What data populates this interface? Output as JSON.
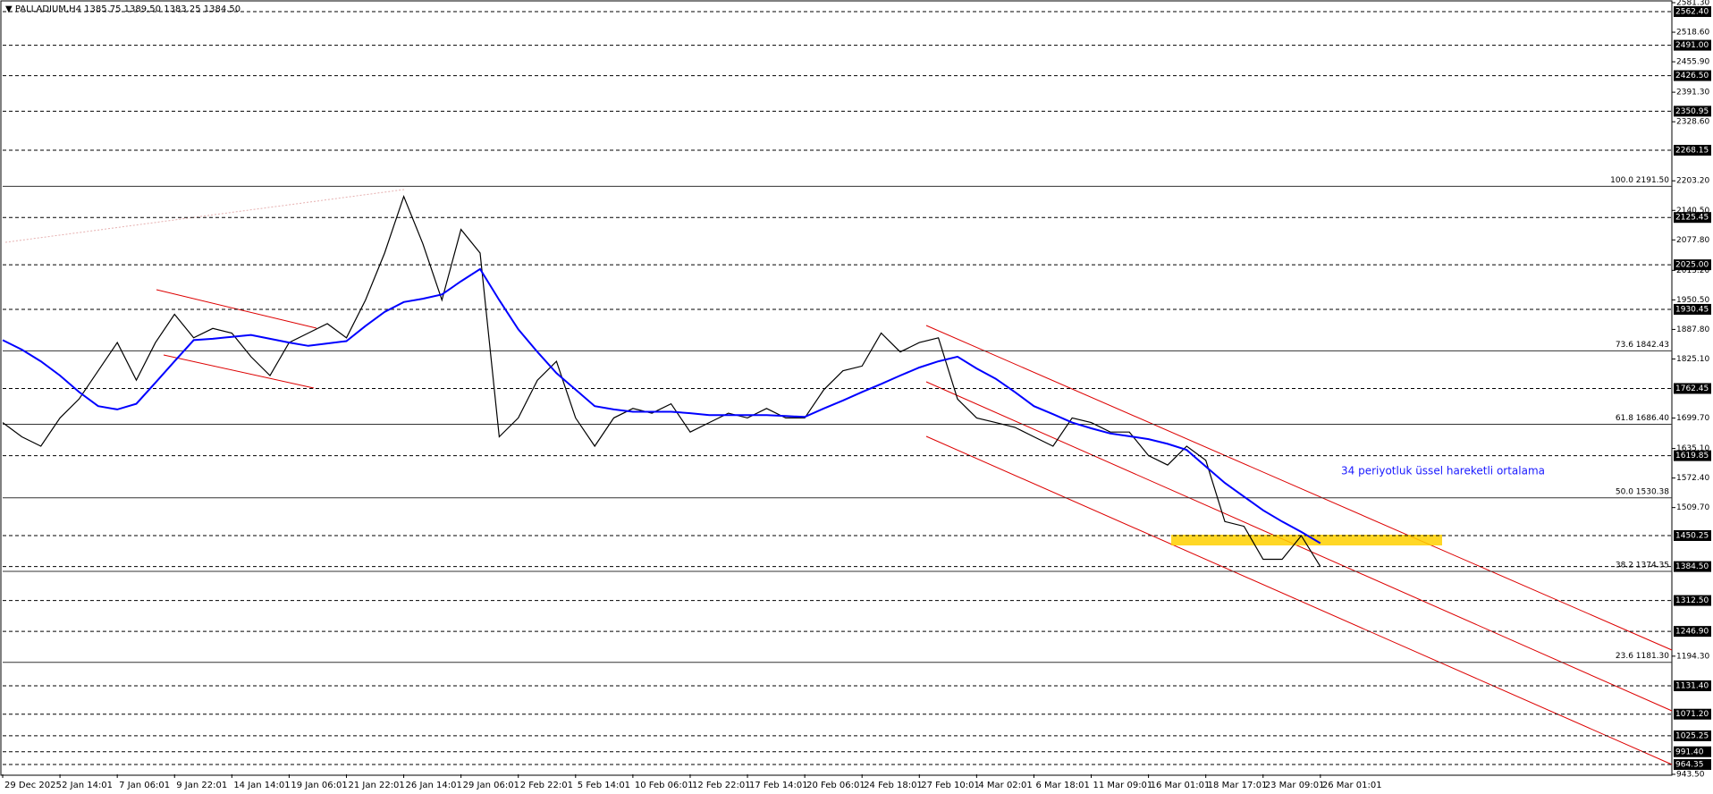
{
  "chart_data": {
    "type": "line",
    "title": "▼ PALLADIUM,H4  1385.75 1389.50 1383.25 1384.50",
    "annotation": "34 periyotluk üssel hareketli ortalama",
    "categories": [
      "29 Dec 2025",
      null,
      null,
      "2 Jan 14:01",
      null,
      null,
      "7 Jan 06:01",
      null,
      null,
      "9 Jan 22:01",
      null,
      null,
      "14 Jan 14:01",
      null,
      null,
      "19 Jan 06:01",
      null,
      null,
      "21 Jan 22:01",
      null,
      null,
      "26 Jan 14:01",
      null,
      null,
      "29 Jan 06:01",
      null,
      null,
      "2 Feb 22:01",
      null,
      null,
      "5 Feb 14:01",
      null,
      null,
      "10 Feb 06:01",
      null,
      null,
      "12 Feb 22:01",
      null,
      null,
      "17 Feb 14:01",
      null,
      null,
      "20 Feb 06:01",
      null,
      null,
      "24 Feb 18:01",
      null,
      null,
      "27 Feb 10:01",
      null,
      null,
      "4 Mar 02:01",
      null,
      null,
      "6 Mar 18:01",
      null,
      null,
      "11 Mar 09:01",
      null,
      null,
      "16 Mar 01:01",
      null,
      null,
      "18 Mar 17:01",
      null,
      null,
      "23 Mar 09:01",
      null,
      null,
      "26 Mar 01:01"
    ],
    "series": [
      {
        "name": "PALLADIUM,H4",
        "color": "#000000",
        "values": [
          1690,
          1660,
          1640,
          1700,
          1740,
          1800,
          1860,
          1780,
          1860,
          1920,
          1870,
          1890,
          1880,
          1830,
          1790,
          1860,
          1880,
          1900,
          1870,
          1950,
          2050,
          2170,
          2070,
          1950,
          2100,
          2050,
          1660,
          1700,
          1780,
          1820,
          1700,
          1640,
          1700,
          1720,
          1710,
          1730,
          1670,
          1690,
          1710,
          1700,
          1720,
          1700,
          1700,
          1760,
          1800,
          1810,
          1880,
          1840,
          1860,
          1870,
          1740,
          1700,
          1690,
          1680,
          1660,
          1640,
          1700,
          1690,
          1670,
          1670,
          1620,
          1600,
          1640,
          1610,
          1480,
          1470,
          1400,
          1400,
          1450,
          1384.5
        ]
      },
      {
        "name": "EMA 34",
        "color": "#0000ff",
        "values": [
          1865,
          1845,
          1820,
          1790,
          1755,
          1725,
          1718,
          1730,
          1775,
          1820,
          1865,
          1868,
          1872,
          1876,
          1868,
          1860,
          1853,
          1858,
          1863,
          1895,
          1925,
          1946,
          1953,
          1962,
          1990,
          2016,
          1950,
          1888,
          1840,
          1795,
          1760,
          1725,
          1718,
          1713,
          1713,
          1713,
          1710,
          1706,
          1706,
          1706,
          1706,
          1704,
          1702,
          1720,
          1737,
          1755,
          1772,
          1790,
          1807,
          1820,
          1830,
          1805,
          1783,
          1755,
          1725,
          1708,
          1690,
          1678,
          1667,
          1661,
          1655,
          1645,
          1632,
          1597,
          1562,
          1533,
          1504,
          1480,
          1458,
          1434
        ]
      }
    ],
    "ylim": [
      943.5,
      2581.3
    ],
    "yticks": [
      {
        "value": 2581.3,
        "label": "2581.30"
      },
      {
        "value": 2518.6,
        "label": "2518.60"
      },
      {
        "value": 2455.9,
        "label": "2455.90"
      },
      {
        "value": 2391.3,
        "label": "2391.30"
      },
      {
        "value": 2328.6,
        "label": "2328.60"
      },
      {
        "value": 2203.2,
        "label": "2203.20"
      },
      {
        "value": 2140.5,
        "label": "2140.50"
      },
      {
        "value": 2077.8,
        "label": "2077.80"
      },
      {
        "value": 2013.2,
        "label": "2013.20"
      },
      {
        "value": 1950.5,
        "label": "1950.50"
      },
      {
        "value": 1887.8,
        "label": "1887.80"
      },
      {
        "value": 1825.1,
        "label": "1825.10"
      },
      {
        "value": 1699.7,
        "label": "1699.70"
      },
      {
        "value": 1635.1,
        "label": "1635.10"
      },
      {
        "value": 1572.4,
        "label": "1572.40"
      },
      {
        "value": 1509.7,
        "label": "1509.70"
      },
      {
        "value": 1194.3,
        "label": "1194.30"
      },
      {
        "value": 943.5,
        "label": "943.50"
      }
    ],
    "levels": [
      {
        "value": 2562.4,
        "label": "2562.40"
      },
      {
        "value": 2491,
        "label": "2491.00"
      },
      {
        "value": 2426.5,
        "label": "2426.50"
      },
      {
        "value": 2350.95,
        "label": "2350.95"
      },
      {
        "value": 2268.15,
        "label": "2268.15"
      },
      {
        "value": 2125.45,
        "label": "2125.45"
      },
      {
        "value": 2025,
        "label": "2025.00"
      },
      {
        "value": 1930.45,
        "label": "1930.45"
      },
      {
        "value": 1762.45,
        "label": "1762.45"
      },
      {
        "value": 1619.85,
        "label": "1619.85"
      },
      {
        "value": 1450.25,
        "label": "1450.25"
      },
      {
        "value": 1384.5,
        "label": "1384.50"
      },
      {
        "value": 1312.5,
        "label": "1312.50"
      },
      {
        "value": 1246.9,
        "label": "1246.90"
      },
      {
        "value": 1131.4,
        "label": "1131.40"
      },
      {
        "value": 1071.2,
        "label": "1071.20"
      },
      {
        "value": 1025.25,
        "label": "1025.25"
      },
      {
        "value": 991.4,
        "label": "991.40"
      },
      {
        "value": 964.35,
        "label": "964.35"
      }
    ],
    "fibonacci": [
      {
        "value": 2191.5,
        "label": "100.0 2191.50"
      },
      {
        "value": 1842.43,
        "label": "73.6 1842.43"
      },
      {
        "value": 1686.4,
        "label": "61.8 1686.40"
      },
      {
        "value": 1530.38,
        "label": "50.0 1530.38"
      },
      {
        "value": 1374.35,
        "label": "38.2 1374.35"
      },
      {
        "value": 1181.3,
        "label": "23.6 1181.30"
      }
    ]
  }
}
